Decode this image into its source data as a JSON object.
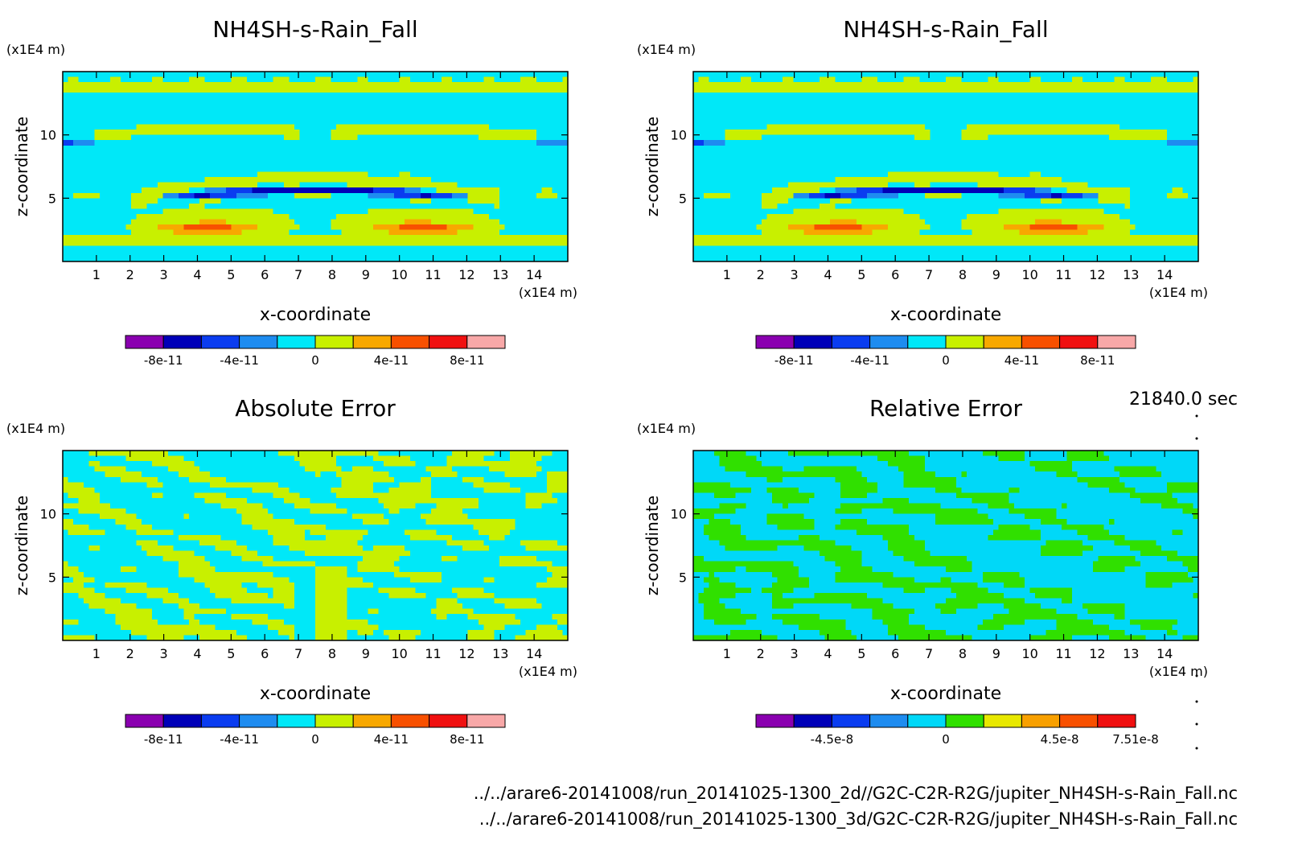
{
  "footer": {
    "time_label": "21840.0 sec",
    "file_2d": "../../arare6-20141008/run_20141025-1300_2d//G2C-C2R-R2G/jupiter_NH4SH-s-Rain_Fall.nc",
    "file_3d": "../../arare6-20141008/run_20141025-1300_3d/G2C-C2R-R2G/jupiter_NH4SH-s-Rain_Fall.nc"
  },
  "colors": {
    "palette": [
      "#8a00b0",
      "#0000b8",
      "#0a3cf0",
      "#1e8cf0",
      "#00e8f8",
      "#c8f000",
      "#f8a800",
      "#f85000",
      "#f01010",
      "#f8a8a8"
    ],
    "relative_palette": [
      "#8a00b0",
      "#0000b8",
      "#0a3cf0",
      "#1e8cf0",
      "#00d8f8",
      "#30e000",
      "#e8e800",
      "#f8a000",
      "#f85000",
      "#f01010"
    ]
  },
  "chart_data": [
    {
      "type": "heatmap",
      "title": "NH4SH-s-Rain_Fall",
      "xlabel": "x-coordinate",
      "ylabel": "z-coordinate",
      "x_unit": "(x1E4 m)",
      "y_unit": "(x1E4 m)",
      "xlim": [
        0,
        15
      ],
      "ylim": [
        0,
        15
      ],
      "xticks": [
        "1",
        "2",
        "3",
        "4",
        "5",
        "6",
        "7",
        "8",
        "9",
        "10",
        "11",
        "12",
        "13",
        "14"
      ],
      "yticks": [
        "5",
        "10"
      ],
      "colorbar_ticks": [
        "-8e-11",
        "-4e-11",
        "0",
        "4e-11",
        "8e-11"
      ],
      "field": "rain"
    },
    {
      "type": "heatmap",
      "title": "NH4SH-s-Rain_Fall",
      "xlabel": "x-coordinate",
      "ylabel": "z-coordinate",
      "x_unit": "(x1E4 m)",
      "y_unit": "(x1E4 m)",
      "xlim": [
        0,
        15
      ],
      "ylim": [
        0,
        15
      ],
      "xticks": [
        "1",
        "2",
        "3",
        "4",
        "5",
        "6",
        "7",
        "8",
        "9",
        "10",
        "11",
        "12",
        "13",
        "14"
      ],
      "yticks": [
        "5",
        "10"
      ],
      "colorbar_ticks": [
        "-8e-11",
        "-4e-11",
        "0",
        "4e-11",
        "8e-11"
      ],
      "field": "rain"
    },
    {
      "type": "heatmap",
      "title": "Absolute Error",
      "xlabel": "x-coordinate",
      "ylabel": "z-coordinate",
      "x_unit": "(x1E4 m)",
      "y_unit": "(x1E4 m)",
      "xlim": [
        0,
        15
      ],
      "ylim": [
        0,
        15
      ],
      "xticks": [
        "1",
        "2",
        "3",
        "4",
        "5",
        "6",
        "7",
        "8",
        "9",
        "10",
        "11",
        "12",
        "13",
        "14"
      ],
      "yticks": [
        "5",
        "10"
      ],
      "colorbar_ticks": [
        "-8e-11",
        "-4e-11",
        "0",
        "4e-11",
        "8e-11"
      ],
      "field": "abs"
    },
    {
      "type": "heatmap",
      "title": "Relative Error",
      "xlabel": "x-coordinate",
      "ylabel": "z-coordinate",
      "x_unit": "(x1E4 m)",
      "y_unit": "(x1E4 m)",
      "xlim": [
        0,
        15
      ],
      "ylim": [
        0,
        15
      ],
      "xticks": [
        "1",
        "2",
        "3",
        "4",
        "5",
        "6",
        "7",
        "8",
        "9",
        "10",
        "11",
        "12",
        "13",
        "14"
      ],
      "yticks": [
        "5",
        "10"
      ],
      "colorbar_ticks": [
        "-4.5e-8",
        "0",
        "4.5e-8",
        "7.51e-8"
      ],
      "field": "rel"
    }
  ]
}
